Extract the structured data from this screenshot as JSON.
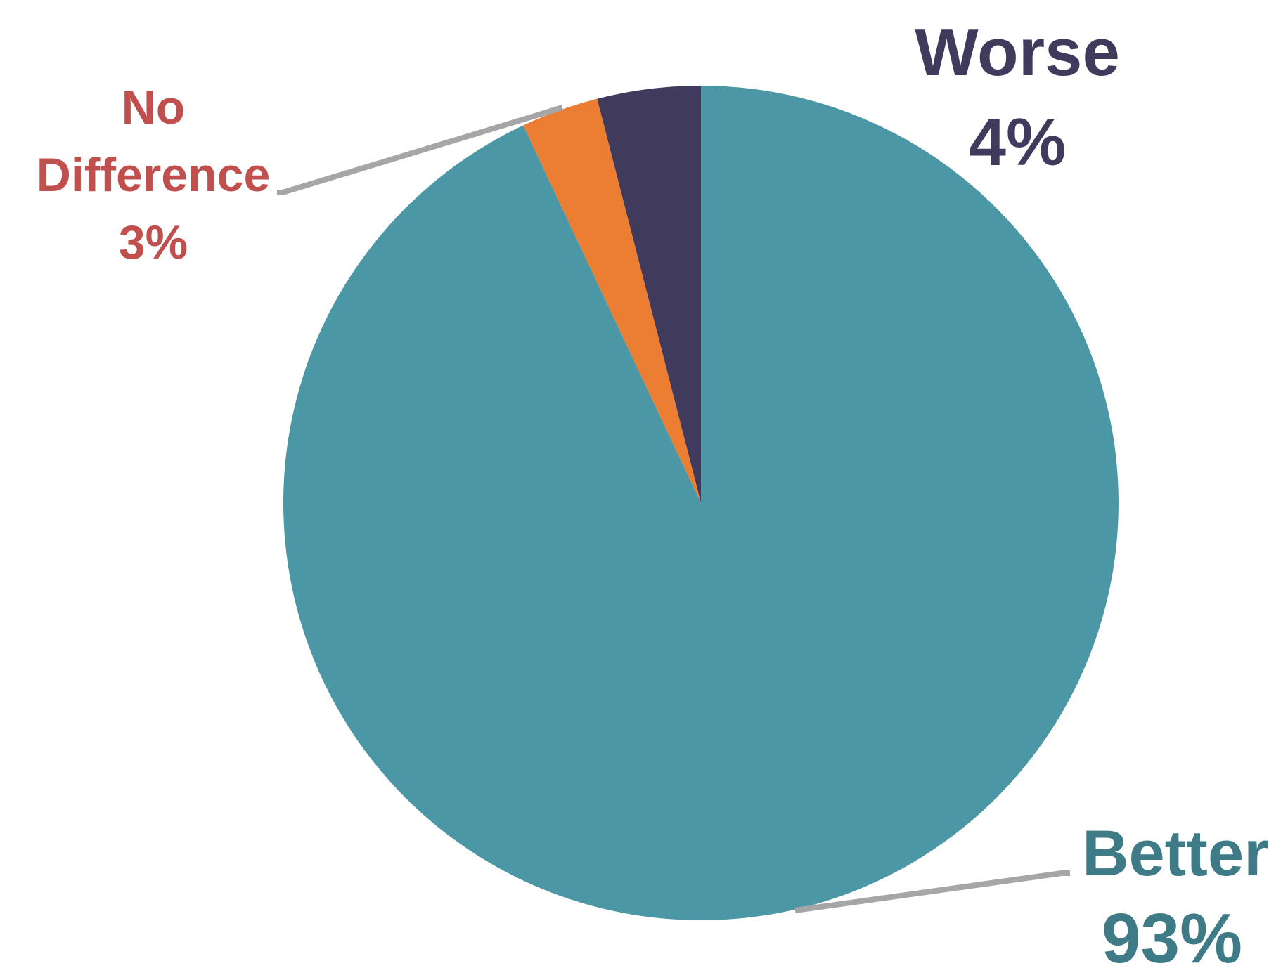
{
  "chart_data": {
    "type": "pie",
    "start_angle": "12 o'clock",
    "direction": "counterclockwise",
    "legend": "none",
    "slices": [
      {
        "label": "Better",
        "value": 93,
        "value_label": "93%",
        "color": "#4b97a5",
        "label_color": "#3e7b86"
      },
      {
        "label": "No Difference",
        "value": 3,
        "value_label": "3%",
        "color": "#ec7e34",
        "label_color": "#c0504d"
      },
      {
        "label": "Worse",
        "value": 4,
        "value_label": "4%",
        "color": "#403a5c",
        "label_color": "#403a5c"
      }
    ],
    "leader_line_color": "#a6a6a6"
  }
}
